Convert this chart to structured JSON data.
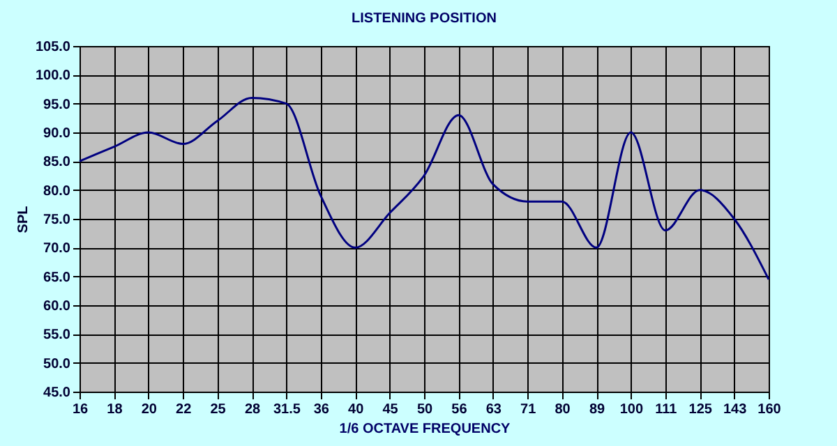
{
  "chart_data": {
    "type": "line",
    "title": "LISTENING POSITION",
    "xlabel": "1/6 OCTAVE FREQUENCY",
    "ylabel": "SPL",
    "categories": [
      "16",
      "18",
      "20",
      "22",
      "25",
      "28",
      "31.5",
      "36",
      "40",
      "45",
      "50",
      "56",
      "63",
      "71",
      "80",
      "89",
      "100",
      "111",
      "125",
      "143",
      "160"
    ],
    "series": [
      {
        "color": "#000080",
        "values": [
          85,
          87.5,
          90,
          88,
          92,
          96,
          95,
          79,
          70,
          76,
          82.5,
          93,
          81,
          78,
          78,
          70,
          90,
          73,
          80,
          75,
          64.5
        ]
      }
    ],
    "ylim": [
      45,
      105
    ],
    "yticks": [
      {
        "value": 45,
        "label": "45.0"
      },
      {
        "value": 50,
        "label": "50.0"
      },
      {
        "value": 55,
        "label": "55.0"
      },
      {
        "value": 60,
        "label": "60.0"
      },
      {
        "value": 65,
        "label": "65.0"
      },
      {
        "value": 70,
        "label": "70.0"
      },
      {
        "value": 75,
        "label": "75.0"
      },
      {
        "value": 80,
        "label": "80.0"
      },
      {
        "value": 85,
        "label": "85.0"
      },
      {
        "value": 90,
        "label": "90.0"
      },
      {
        "value": 95,
        "label": "95.0"
      },
      {
        "value": 100,
        "label": "100.0"
      },
      {
        "value": 105,
        "label": "105.0"
      }
    ],
    "grid": true,
    "marker": "none",
    "line_style": "solid"
  }
}
